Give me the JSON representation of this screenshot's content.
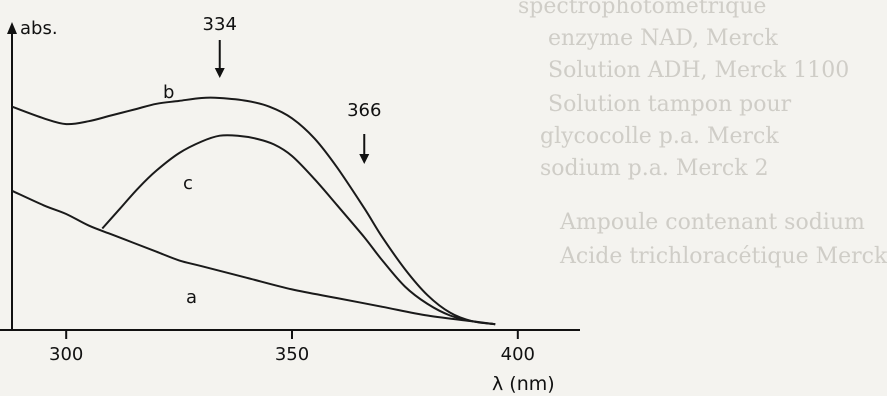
{
  "chart_data": {
    "type": "line",
    "ylabel": "abs.",
    "xlabel": "λ (nm)",
    "xlim": [
      288,
      412
    ],
    "ylim": [
      0,
      1
    ],
    "x_ticks": [
      300,
      350,
      400
    ],
    "grid": false,
    "legend": "none",
    "series": [
      {
        "name": "a",
        "x": [
          288,
          295,
          300,
          305,
          310,
          315,
          320,
          325,
          330,
          340,
          350,
          360,
          370,
          380,
          390,
          395
        ],
        "y": [
          0.48,
          0.43,
          0.4,
          0.36,
          0.33,
          0.3,
          0.27,
          0.24,
          0.22,
          0.18,
          0.14,
          0.11,
          0.08,
          0.05,
          0.03,
          0.02
        ]
      },
      {
        "name": "b",
        "x": [
          288,
          295,
          300,
          305,
          310,
          315,
          320,
          325,
          330,
          334,
          340,
          345,
          350,
          355,
          360,
          366,
          370,
          375,
          380,
          385,
          390,
          395
        ],
        "y": [
          0.77,
          0.73,
          0.71,
          0.72,
          0.74,
          0.76,
          0.78,
          0.79,
          0.8,
          0.8,
          0.79,
          0.77,
          0.73,
          0.66,
          0.56,
          0.42,
          0.32,
          0.21,
          0.12,
          0.06,
          0.03,
          0.02
        ]
      },
      {
        "name": "c",
        "x": [
          308,
          312,
          316,
          320,
          325,
          330,
          334,
          338,
          342,
          346,
          350,
          355,
          360,
          366,
          370,
          375,
          380,
          385,
          390,
          395
        ],
        "y": [
          0.35,
          0.42,
          0.49,
          0.55,
          0.61,
          0.65,
          0.67,
          0.67,
          0.66,
          0.64,
          0.6,
          0.52,
          0.43,
          0.32,
          0.24,
          0.15,
          0.09,
          0.05,
          0.03,
          0.02
        ]
      }
    ],
    "annotations": [
      {
        "text": "334",
        "x": 334
      },
      {
        "text": "366",
        "x": 366
      }
    ]
  },
  "background_text": [
    "spectrophotométrique",
    "enzyme NAD, Merck",
    "Solution ADH, Merck 1100",
    "Solution tampon pour",
    "glycocolle p.a. Merck",
    "sodium p.a. Merck 2",
    "Ampoule contenant sodium",
    "Acide trichloracétique Merck"
  ]
}
